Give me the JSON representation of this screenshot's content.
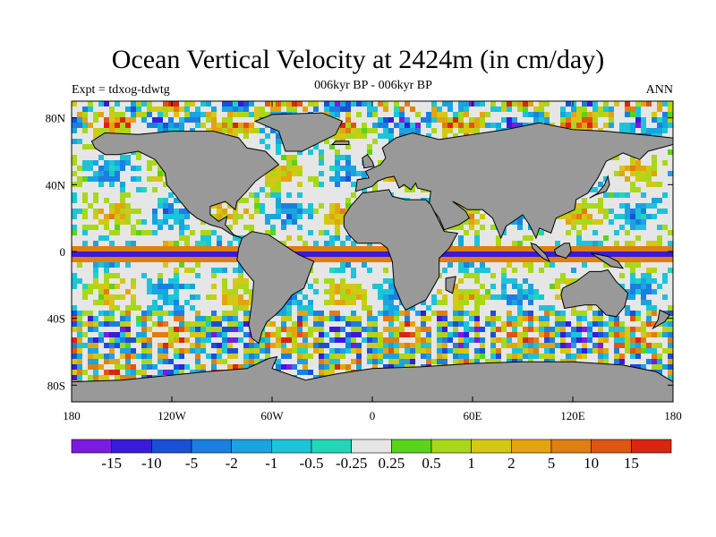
{
  "header": {
    "title": "Ocean Vertical Velocity at 2424m (in cm/day)",
    "experiment": "Expt = tdxog-tdwtg",
    "period": "006kyr BP - 006kyr BP",
    "season": "ANN"
  },
  "map": {
    "projection": "cylindrical-equidistant",
    "lon_range": [
      -180,
      180
    ],
    "lat_range": [
      -90,
      90
    ],
    "lon_ticks": [
      {
        "value": -180,
        "label": "180"
      },
      {
        "value": -120,
        "label": "120W"
      },
      {
        "value": -60,
        "label": "60W"
      },
      {
        "value": 0,
        "label": "0"
      },
      {
        "value": 60,
        "label": "60E"
      },
      {
        "value": 120,
        "label": "120E"
      },
      {
        "value": 180,
        "label": "180"
      }
    ],
    "lat_ticks": [
      {
        "value": 80,
        "label": "80N"
      },
      {
        "value": 40,
        "label": "40N"
      },
      {
        "value": 0,
        "label": "0"
      },
      {
        "value": -40,
        "label": "40S"
      },
      {
        "value": -80,
        "label": "80S"
      }
    ],
    "land_color": "#999999",
    "coast_color": "#000000"
  },
  "colorbar": {
    "labels": [
      "-15",
      "-10",
      "-5",
      "-2",
      "-1",
      "-0.5",
      "-0.25",
      "0.25",
      "0.5",
      "1",
      "2",
      "5",
      "10",
      "15"
    ],
    "colors": [
      "#7b1ae0",
      "#3a1adc",
      "#1a4fd8",
      "#1a7fe0",
      "#18a4e0",
      "#1cc4d8",
      "#20d8b8",
      "#e6e6e6",
      "#5ad418",
      "#a8d818",
      "#d4c812",
      "#e4a410",
      "#e07e10",
      "#e05414",
      "#dc2412"
    ]
  }
}
